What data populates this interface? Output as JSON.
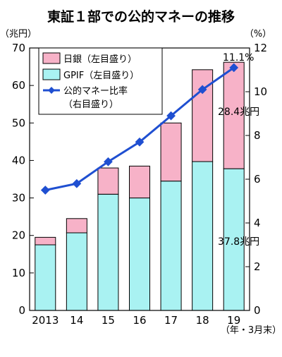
{
  "chart_data": {
    "type": "bar+line",
    "title": "東証１部での公的マネーの推移",
    "left_unit": "（兆円）",
    "right_unit": "（%）",
    "x_unit": "（年・3月末）",
    "categories": [
      "2013",
      "14",
      "15",
      "16",
      "17",
      "18",
      "19"
    ],
    "ylim_left": [
      0,
      70
    ],
    "ylim_right": [
      0,
      12
    ],
    "yticks_left": [
      "0",
      "10",
      "20",
      "30",
      "40",
      "50",
      "60",
      "70"
    ],
    "yticks_right": [
      "0",
      "2",
      "4",
      "6",
      "8",
      "10",
      "12"
    ],
    "series": [
      {
        "name": "日銀（左目盛り）",
        "kind": "stacked-bar",
        "axis": "left",
        "color": "#f7b2c8",
        "values": [
          2.0,
          3.8,
          7.0,
          8.5,
          15.5,
          24.5,
          28.4
        ]
      },
      {
        "name": "GPIF（左目盛り）",
        "kind": "stacked-bar",
        "axis": "left",
        "color": "#a9f2f2",
        "values": [
          17.5,
          20.7,
          31.0,
          30.0,
          34.5,
          39.7,
          37.8
        ]
      },
      {
        "name": "公的マネー比率\n（右目盛り）",
        "kind": "line",
        "axis": "right",
        "color": "#1f4fd1",
        "values": [
          5.5,
          5.8,
          6.8,
          7.7,
          8.9,
          10.1,
          11.1
        ]
      }
    ],
    "annotations": {
      "ratio_last": "11.1%",
      "boj_last": "28.4兆円",
      "gpif_last": "37.8兆円"
    },
    "grid": false,
    "legend_position": "top-left"
  }
}
